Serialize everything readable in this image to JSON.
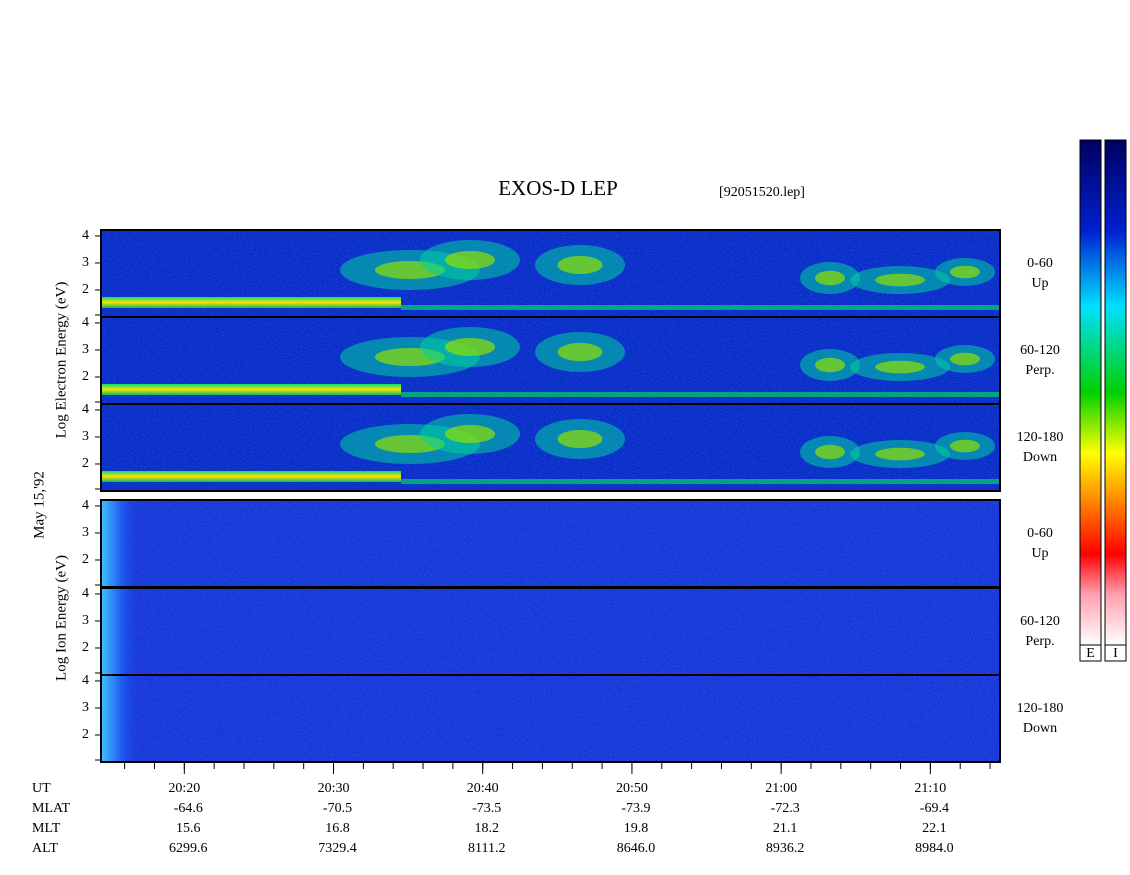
{
  "title": "EXOS-D LEP",
  "file": "[92051520.lep]",
  "date": "May 15,'92",
  "ylim": [
    1,
    4.22
  ],
  "yticks": [
    2,
    3,
    4
  ],
  "electron": {
    "axis_label": "Log Electron Energy (eV)",
    "panels": [
      {
        "range": "0-60",
        "direction": "Up"
      },
      {
        "range": "60-120",
        "direction": "Perp."
      },
      {
        "range": "120-180",
        "direction": "Down"
      }
    ]
  },
  "ion": {
    "axis_label": "Log Ion Energy (eV)",
    "panels": [
      {
        "range": "0-60",
        "direction": "Up"
      },
      {
        "range": "60-120",
        "direction": "Perp."
      },
      {
        "range": "120-180",
        "direction": "Down"
      }
    ]
  },
  "colorbars": [
    "E",
    "I"
  ],
  "time_axis": {
    "xlim": [
      "20:14:25",
      "21:14:40"
    ],
    "label": "UT",
    "ticks": [
      "20:20",
      "20:30",
      "20:40",
      "20:50",
      "21:00",
      "21:10"
    ]
  },
  "ephemeris": [
    {
      "label": "MLAT",
      "values": [
        "-64.6",
        "-70.5",
        "-73.5",
        "-73.9",
        "-72.3",
        "-69.4"
      ]
    },
    {
      "label": "MLT",
      "values": [
        "15.6",
        "16.8",
        "18.2",
        "19.8",
        "21.1",
        "22.1"
      ]
    },
    {
      "label": "ALT",
      "values": [
        "6299.6",
        "7329.4",
        "8111.2",
        "8646.0",
        "8936.2",
        "8984.0"
      ]
    }
  ]
}
